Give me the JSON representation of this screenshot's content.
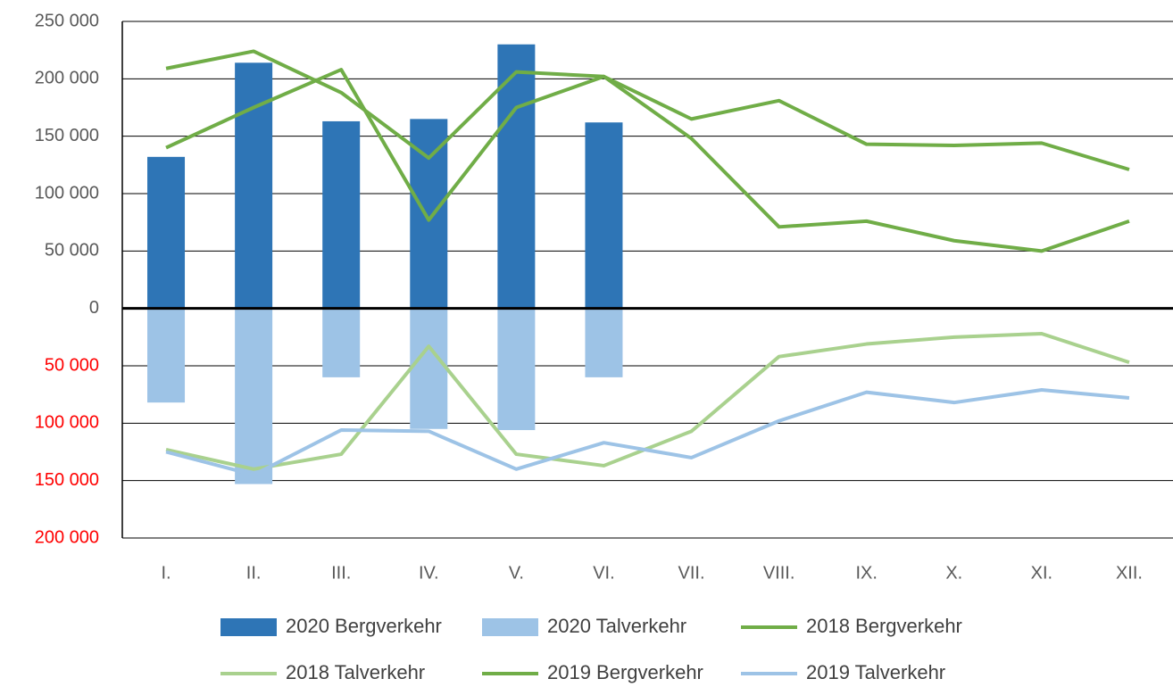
{
  "chart_data": {
    "type": "bar",
    "categories": [
      "I.",
      "II.",
      "III.",
      "IV.",
      "V.",
      "VI.",
      "VII.",
      "VIII.",
      "IX.",
      "X.",
      "XI.",
      "XII."
    ],
    "series": [
      {
        "name": "2020 Bergverkehr",
        "type": "bar",
        "color": "#2e75b6",
        "values": [
          132000,
          214000,
          163000,
          165000,
          230000,
          162000,
          null,
          null,
          null,
          null,
          null,
          null
        ]
      },
      {
        "name": "2020 Talverkehr",
        "type": "bar",
        "color": "#9dc3e6",
        "values": [
          -82000,
          -153000,
          -60000,
          -105000,
          -106000,
          -60000,
          null,
          null,
          null,
          null,
          null,
          null
        ]
      },
      {
        "name": "2018 Bergverkehr",
        "type": "line",
        "color": "#70ad47",
        "values": [
          209000,
          224000,
          188000,
          131000,
          206000,
          202000,
          165000,
          181000,
          143000,
          142000,
          144000,
          121000
        ]
      },
      {
        "name": "2018 Talverkehr",
        "type": "line",
        "color": "#a9d18e",
        "values": [
          -123000,
          -140000,
          -127000,
          -33000,
          -127000,
          -137000,
          -107000,
          -42000,
          -31000,
          -25000,
          -22000,
          -47000
        ]
      },
      {
        "name": "2019 Bergverkehr",
        "type": "line",
        "color": "#70ad47",
        "values": [
          140000,
          175000,
          208000,
          77000,
          175000,
          202000,
          148000,
          71000,
          76000,
          59000,
          50000,
          76000
        ]
      },
      {
        "name": "2019 Talverkehr",
        "type": "line",
        "color": "#9dc3e6",
        "values": [
          -125000,
          -145000,
          -106000,
          -107000,
          -140000,
          -117000,
          -130000,
          -98000,
          -73000,
          -82000,
          -71000,
          -78000
        ]
      }
    ],
    "ylim": [
      -200000,
      250000
    ],
    "yticks": [
      {
        "value": 250000,
        "label": "250 000"
      },
      {
        "value": 200000,
        "label": "200 000"
      },
      {
        "value": 150000,
        "label": "150 000"
      },
      {
        "value": 100000,
        "label": "100 000"
      },
      {
        "value": 50000,
        "label": "50 000"
      },
      0,
      {
        "value": -50000,
        "label": "50 000"
      },
      {
        "value": -100000,
        "label": "100 000"
      },
      {
        "value": -150000,
        "label": "150 000"
      },
      {
        "value": -200000,
        "label": "200 000"
      }
    ],
    "grid": true,
    "negative_tick_color": "#ff0000",
    "legend": "bottom"
  }
}
